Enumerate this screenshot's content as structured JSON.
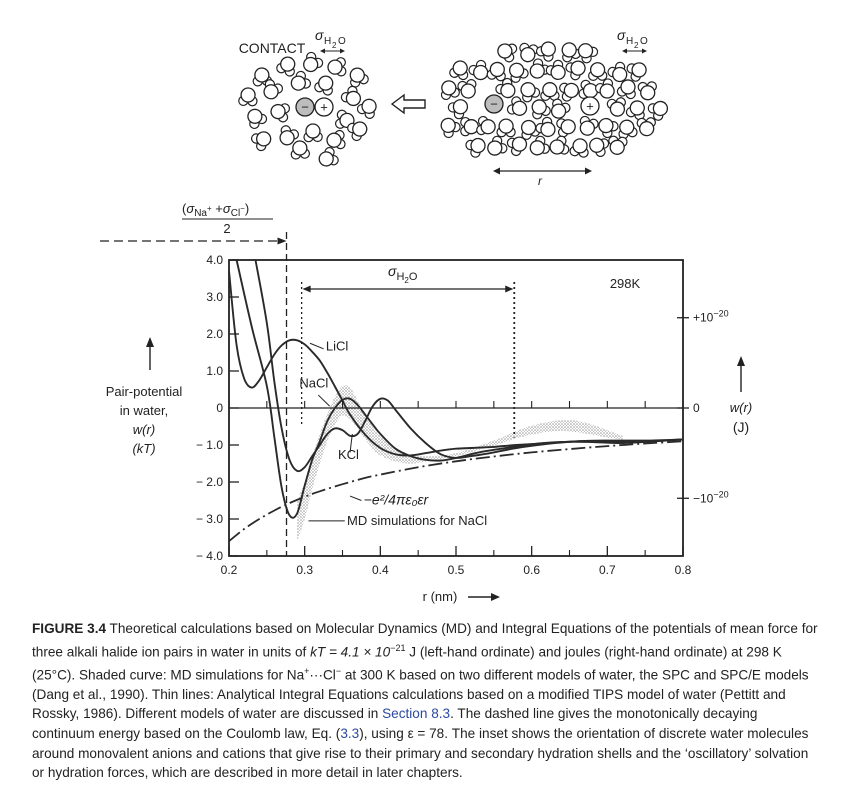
{
  "figure": {
    "inset": {
      "contact_label": "CONTACT",
      "sigma_label_left": "σH2O",
      "sigma_label_right": "σH2O",
      "r_label": "r",
      "anion_sign": "−",
      "cation_sign": "+"
    },
    "caption": {
      "label": "FIGURE 3.4",
      "text_1": " Theoretical calculations based on Molecular Dynamics (MD) and Integral Equations of the potentials of mean force for three alkali halide ion pairs in water in units of ",
      "kt_expr": "kT = 4.1 × 10",
      "kt_exp": "−21",
      "text_2": " J (left-hand ordinate) and joules (right-hand ordinate) at 298 K (25°C). Shaded curve: MD simulations for Na",
      "na_sup": "+",
      "text_3": "···Cl",
      "cl_sup": "−",
      "text_4": " at 300 K based on two different models of water, the SPC and SPC/E models (Dang et al., 1990). Thin lines: Analytical Integral Equations calculations based on a modified TIPS model of water (Pettitt and Rossky, 1986). Different models of water are discussed in ",
      "section_link": "Section 8.3",
      "text_5": ". The dashed line gives the monotonically decaying continuum energy based on the Coulomb law, Eq. (",
      "eq_link": "3.3",
      "text_6": "), using ε = 78. The inset shows the orientation of discrete water molecules around monovalent anions and cations that give rise to their primary and secondary hydration shells and the ‘oscillatory’ solvation or hydration forces, which are described in more detail in later chapters."
    }
  },
  "chart_data": {
    "type": "line",
    "title": "",
    "temperature_label": "298K",
    "xlabel": "r (nm)",
    "ylabel_lines": [
      "Pair-potential",
      "in water,",
      "w(r)",
      "(kT)"
    ],
    "ylabel_right": [
      "w(r)",
      "(J)"
    ],
    "xlim": [
      0.2,
      0.8
    ],
    "ylim": [
      -4.0,
      4.0
    ],
    "xticks": [
      "0.2",
      "0.3",
      "0.4",
      "0.5",
      "0.6",
      "0.7",
      "0.8"
    ],
    "yticks": [
      "4.0",
      "3.0",
      "2.0",
      "1.0",
      "0",
      "− 1.0",
      "− 2.0",
      "− 3.0",
      "− 4.0"
    ],
    "right_ticks": [
      "+10−20",
      "0",
      "−10−20"
    ],
    "right_tick_values_kT": [
      2.44,
      0,
      -2.44
    ],
    "contact_annotation": {
      "numerator": "(σNa+ + σCl−)",
      "denominator": "2",
      "x": 0.276
    },
    "sigma_annotation": {
      "label": "σH2O",
      "x_start": 0.296,
      "x_end": 0.577
    },
    "series": [
      {
        "name": "LiCl",
        "style": "solid",
        "x": [
          0.2,
          0.21,
          0.22,
          0.23,
          0.24,
          0.25,
          0.26,
          0.27,
          0.28,
          0.29,
          0.3,
          0.31,
          0.32,
          0.33,
          0.34,
          0.35,
          0.36,
          0.38,
          0.4,
          0.42,
          0.44,
          0.46,
          0.48,
          0.5,
          0.52,
          0.55,
          0.58,
          0.62,
          0.66,
          0.7,
          0.74,
          0.8
        ],
        "y": [
          3.7,
          1.7,
          0.8,
          0.55,
          0.75,
          1.1,
          1.45,
          1.7,
          1.83,
          1.83,
          1.72,
          1.52,
          1.28,
          0.95,
          0.58,
          0.2,
          -0.18,
          -0.72,
          -1.08,
          -1.25,
          -1.28,
          -1.22,
          -1.15,
          -1.1,
          -1.08,
          -1.05,
          -1.0,
          -0.95,
          -0.9,
          -0.9,
          -0.92,
          -0.85
        ]
      },
      {
        "name": "NaCl",
        "style": "solid",
        "x": [
          0.21,
          0.23,
          0.25,
          0.26,
          0.27,
          0.28,
          0.29,
          0.3,
          0.31,
          0.32,
          0.33,
          0.34,
          0.35,
          0.36,
          0.37,
          0.38,
          0.39,
          0.4,
          0.42,
          0.44,
          0.46,
          0.48,
          0.5,
          0.53,
          0.56,
          0.6,
          0.64,
          0.68,
          0.72,
          0.76,
          0.8
        ],
        "y": [
          4.0,
          2.2,
          0.6,
          -0.8,
          -2.2,
          -2.9,
          -2.85,
          -2.1,
          -1.4,
          -0.9,
          -0.35,
          0.0,
          0.22,
          0.25,
          0.08,
          -0.18,
          -0.45,
          -0.7,
          -1.1,
          -1.3,
          -1.4,
          -1.42,
          -1.35,
          -1.2,
          -1.1,
          -0.98,
          -0.92,
          -0.92,
          -0.95,
          -0.9,
          -0.85
        ]
      },
      {
        "name": "KCl",
        "style": "solid",
        "x": [
          0.235,
          0.25,
          0.26,
          0.27,
          0.28,
          0.29,
          0.3,
          0.31,
          0.32,
          0.33,
          0.34,
          0.35,
          0.36,
          0.37,
          0.38,
          0.39,
          0.4,
          0.41,
          0.42,
          0.44,
          0.46,
          0.48,
          0.5,
          0.52,
          0.55,
          0.58,
          0.62,
          0.66,
          0.7,
          0.75,
          0.8
        ],
        "y": [
          4.0,
          2.3,
          0.7,
          -0.6,
          -1.4,
          -1.7,
          -1.6,
          -1.3,
          -1.0,
          -0.7,
          -0.55,
          -0.6,
          -0.75,
          -0.7,
          -0.35,
          0.05,
          0.25,
          0.2,
          -0.05,
          -0.55,
          -0.95,
          -1.25,
          -1.35,
          -1.3,
          -1.2,
          -1.08,
          -0.97,
          -0.9,
          -0.88,
          -0.88,
          -0.85
        ]
      },
      {
        "name": "−e²/4πε₀εr",
        "style": "dashdot",
        "x": [
          0.2,
          0.22,
          0.24,
          0.26,
          0.28,
          0.3,
          0.32,
          0.35,
          0.38,
          0.4,
          0.45,
          0.5,
          0.55,
          0.6,
          0.65,
          0.7,
          0.75,
          0.8
        ],
        "y": [
          -3.6,
          -3.27,
          -3.0,
          -2.77,
          -2.57,
          -2.4,
          -2.25,
          -2.06,
          -1.89,
          -1.8,
          -1.6,
          -1.44,
          -1.31,
          -1.2,
          -1.11,
          -1.03,
          -0.96,
          -0.9
        ]
      },
      {
        "name": "MD simulations for NaCl",
        "style": "shaded",
        "x": [
          0.29,
          0.3,
          0.31,
          0.32,
          0.33,
          0.34,
          0.35,
          0.36,
          0.37,
          0.38,
          0.39,
          0.4,
          0.42,
          0.44,
          0.46,
          0.48,
          0.5,
          0.52,
          0.54,
          0.56,
          0.58,
          0.6,
          0.62,
          0.64,
          0.66,
          0.68,
          0.7,
          0.72
        ],
        "upper": [
          -2.5,
          -2.0,
          -1.3,
          -0.7,
          -0.15,
          0.3,
          0.6,
          0.55,
          0.2,
          -0.2,
          -0.5,
          -0.75,
          -1.1,
          -1.28,
          -1.3,
          -1.28,
          -1.22,
          -1.1,
          -0.95,
          -0.8,
          -0.62,
          -0.48,
          -0.38,
          -0.33,
          -0.35,
          -0.45,
          -0.6,
          -0.75
        ],
        "lower": [
          -3.6,
          -3.0,
          -2.2,
          -1.5,
          -0.9,
          -0.45,
          -0.2,
          -0.3,
          -0.55,
          -0.85,
          -1.1,
          -1.28,
          -1.45,
          -1.5,
          -1.45,
          -1.38,
          -1.3,
          -1.2,
          -1.08,
          -0.95,
          -0.82,
          -0.72,
          -0.65,
          -0.62,
          -0.66,
          -0.72,
          -0.8,
          -0.85
        ]
      }
    ],
    "series_labels": [
      "LiCl",
      "NaCl",
      "KCl",
      "−e²/4πε₀εr",
      "MD simulations for NaCl"
    ],
    "grid": false,
    "legend": "none (inline curve labels)"
  }
}
